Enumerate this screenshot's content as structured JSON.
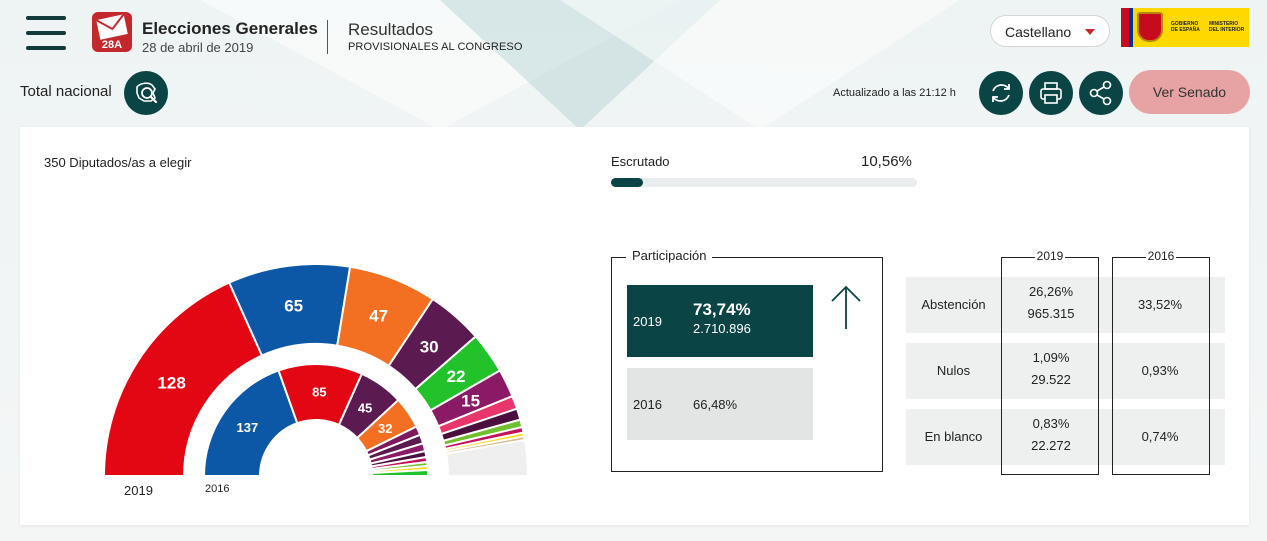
{
  "header": {
    "logo_badge": "28A",
    "title": "Elecciones Generales",
    "date": "28 de abril de 2019",
    "results_title": "Resultados",
    "results_subtitle": "PROVISIONALES AL CONGRESO",
    "language": "Castellano",
    "gov_logo_left": "GOBIERNO DE ESPAÑA",
    "gov_logo_right": "MINISTERIO DEL INTERIOR"
  },
  "toolbar": {
    "scope": "Total nacional",
    "updated": "Actualizado a las 21:12 h",
    "senate_button": "Ver Senado"
  },
  "seats": {
    "label": "350 Diputados/as a elegir",
    "outer_year": "2019",
    "inner_year": "2016",
    "outer": [
      {
        "value": 128,
        "label": "128",
        "color": "#e30613"
      },
      {
        "value": 65,
        "label": "65",
        "color": "#0d58a6"
      },
      {
        "value": 47,
        "label": "47",
        "color": "#f36f21"
      },
      {
        "value": 30,
        "label": "30",
        "color": "#5b1a50"
      },
      {
        "value": 22,
        "label": "22",
        "color": "#21c22a"
      },
      {
        "value": 15,
        "label": "15",
        "color": "#8a1a66"
      },
      {
        "value": 7,
        "label": "",
        "color": "#e8356c"
      },
      {
        "value": 6,
        "label": "",
        "color": "#4b0f3e"
      },
      {
        "value": 4,
        "label": "",
        "color": "#6fbf2e"
      },
      {
        "value": 3,
        "label": "",
        "color": "#c2125a"
      },
      {
        "value": 2,
        "label": "",
        "color": "#ffda1a"
      },
      {
        "value": 2,
        "label": "",
        "color": "#d9b88a"
      },
      {
        "value": 19,
        "label": "",
        "color": "#efefef"
      }
    ],
    "inner": [
      {
        "value": 137,
        "label": "137",
        "color": "#0d58a6"
      },
      {
        "value": 85,
        "label": "85",
        "color": "#e30613"
      },
      {
        "value": 45,
        "label": "45",
        "color": "#5b1a50"
      },
      {
        "value": 32,
        "label": "32",
        "color": "#f36f21"
      },
      {
        "value": 9,
        "label": "",
        "color": "#7d1b5e"
      },
      {
        "value": 9,
        "label": "",
        "color": "#5b1a50"
      },
      {
        "value": 8,
        "label": "",
        "color": "#8a1a66"
      },
      {
        "value": 6,
        "label": "",
        "color": "#4b0f3e"
      },
      {
        "value": 5,
        "label": "",
        "color": "#c2125a"
      },
      {
        "value": 4,
        "label": "",
        "color": "#6fbf2e"
      },
      {
        "value": 4,
        "label": "",
        "color": "#ffda1a"
      },
      {
        "value": 6,
        "label": "",
        "color": "#21c22a"
      }
    ]
  },
  "scrutiny": {
    "label": "Escrutado",
    "value": "10,56%",
    "fraction": 0.1056
  },
  "participation": {
    "title": "Participación",
    "y2019": {
      "year": "2019",
      "pct": "73,74%",
      "votes": "2.710.896"
    },
    "y2016": {
      "year": "2016",
      "pct": "66,48%"
    }
  },
  "stats": {
    "col2019": "2019",
    "col2016": "2016",
    "rows": [
      {
        "label": "Abstención",
        "pct2019": "26,26%",
        "num2019": "965.315",
        "pct2016": "33,52%"
      },
      {
        "label": "Nulos",
        "pct2019": "1,09%",
        "num2019": "29.522",
        "pct2016": "0,93%"
      },
      {
        "label": "En blanco",
        "pct2019": "0,83%",
        "num2019": "22.272",
        "pct2016": "0,74%"
      }
    ]
  }
}
